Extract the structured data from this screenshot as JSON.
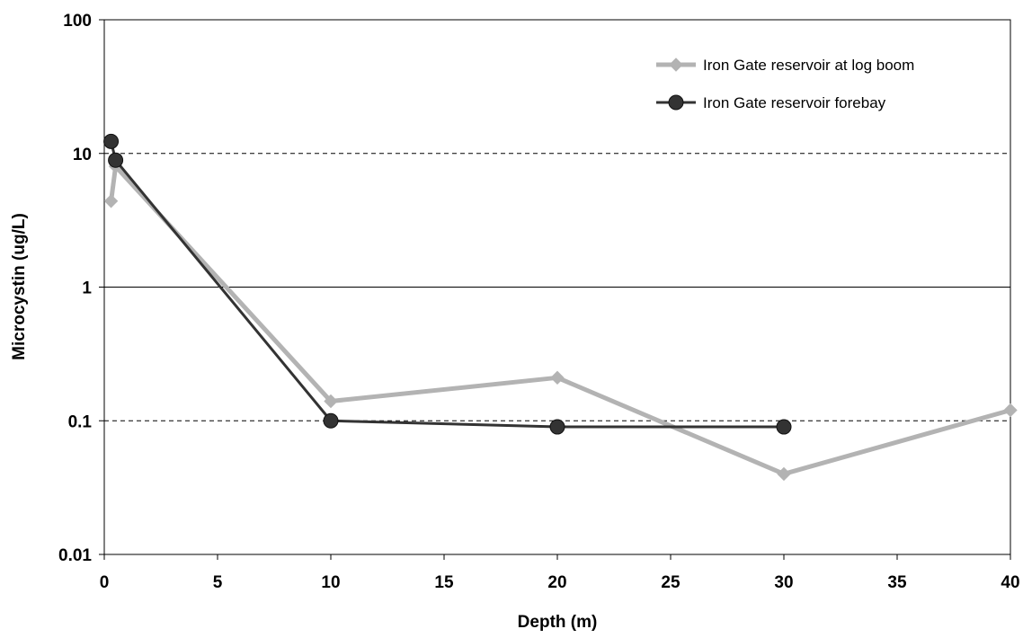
{
  "chart_data": {
    "type": "line",
    "title": "",
    "xlabel": "Depth (m)",
    "ylabel": "Microcystin (ug/L)",
    "xlim": [
      0,
      40
    ],
    "ylim": [
      0.01,
      100
    ],
    "yscale": "log",
    "x_ticks": [
      0,
      5,
      10,
      15,
      20,
      25,
      30,
      35,
      40
    ],
    "y_ticks": [
      0.01,
      0.1,
      1,
      10,
      100
    ],
    "y_tick_labels": [
      "0.01",
      "0.1",
      "1",
      "10",
      "100"
    ],
    "grid": "horizontal",
    "legend_position": "top-right",
    "series": [
      {
        "name": "Iron Gate reservoir at log boom",
        "color": "#b3b3b3",
        "marker": "diamond",
        "points": [
          [
            0.3,
            4.4
          ],
          [
            0.5,
            8.0
          ],
          [
            10,
            0.14
          ],
          [
            20,
            0.21
          ],
          [
            30,
            0.04
          ],
          [
            40,
            0.12
          ]
        ]
      },
      {
        "name": "Iron Gate reservoir forebay",
        "color": "#333333",
        "marker": "circle",
        "points": [
          [
            0.3,
            12.3
          ],
          [
            0.5,
            8.9
          ],
          [
            10,
            0.1
          ],
          [
            20,
            0.09
          ],
          [
            30,
            0.09
          ]
        ]
      }
    ]
  }
}
